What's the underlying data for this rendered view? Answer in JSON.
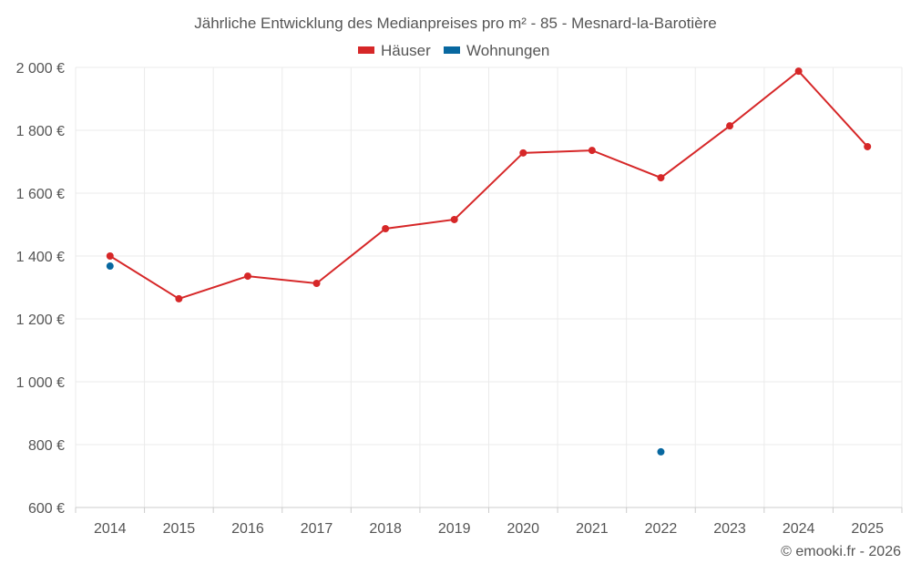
{
  "chart_data": {
    "type": "line",
    "title": "Jährliche Entwicklung des Medianpreises pro m² - 85 - Mesnard-la-Barotière",
    "categories": [
      "2014",
      "2015",
      "2016",
      "2017",
      "2018",
      "2019",
      "2020",
      "2021",
      "2022",
      "2023",
      "2024",
      "2025"
    ],
    "series": [
      {
        "name": "Häuser",
        "color": "#d62728",
        "values": [
          1400,
          1264,
          1336,
          1313,
          1487,
          1516,
          1728,
          1736,
          1649,
          1814,
          1988,
          1748
        ]
      },
      {
        "name": "Wohnungen",
        "color": "#0868a0",
        "values": [
          1368,
          null,
          null,
          null,
          null,
          null,
          null,
          null,
          777,
          null,
          null,
          null
        ]
      }
    ],
    "ylim": [
      600,
      2000
    ],
    "yticks": [
      600,
      800,
      1000,
      1200,
      1400,
      1600,
      1800,
      2000
    ],
    "ytick_labels": [
      "600 €",
      "800 €",
      "1 000 €",
      "1 200 €",
      "1 400 €",
      "1 600 €",
      "1 800 €",
      "2 000 €"
    ],
    "xlabel": "",
    "ylabel": "",
    "grid": true,
    "legend_position": "top-center"
  },
  "credit": "© emooki.fr - 2026"
}
